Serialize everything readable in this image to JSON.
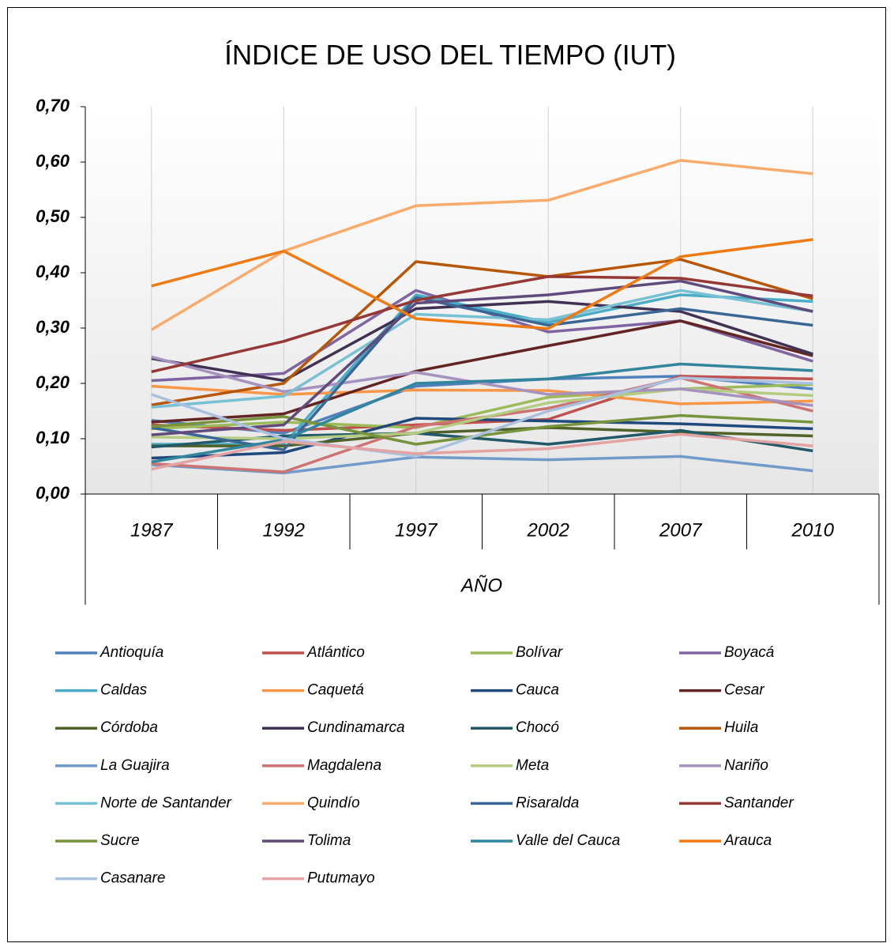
{
  "chart_data": {
    "type": "line",
    "title": "ÍNDICE DE USO DEL TIEMPO (IUT)",
    "x_label": "AÑO",
    "categories": [
      "1987",
      "1992",
      "1997",
      "2002",
      "2007",
      "2010"
    ],
    "ylim": [
      0,
      0.7
    ],
    "yticks": [
      {
        "value": 0,
        "label": "0,00"
      },
      {
        "value": 0.1,
        "label": "0,10"
      },
      {
        "value": 0.2,
        "label": "0,20"
      },
      {
        "value": 0.3,
        "label": "0,30"
      },
      {
        "value": 0.4,
        "label": "0,40"
      },
      {
        "value": 0.5,
        "label": "0,50"
      },
      {
        "value": 0.6,
        "label": "0,60"
      },
      {
        "value": 0.7,
        "label": "0,70"
      }
    ],
    "grid": true,
    "series": [
      {
        "name": "Antioquía",
        "color": "#4f81bd",
        "values": [
          0.133,
          0.11,
          0.195,
          0.208,
          0.213,
          0.19
        ]
      },
      {
        "name": "Atlántico",
        "color": "#c0504d",
        "values": [
          0.125,
          0.115,
          0.125,
          0.135,
          0.213,
          0.208
        ]
      },
      {
        "name": "Bolívar",
        "color": "#9bbb59",
        "values": [
          0.118,
          0.13,
          0.12,
          0.175,
          0.19,
          0.198
        ]
      },
      {
        "name": "Boyacá",
        "color": "#8064a2",
        "values": [
          0.205,
          0.218,
          0.368,
          0.293,
          0.313,
          0.24
        ]
      },
      {
        "name": "Caldas",
        "color": "#4bacc6",
        "values": [
          0.09,
          0.09,
          0.36,
          0.31,
          0.36,
          0.348
        ]
      },
      {
        "name": "Caquetá",
        "color": "#f79646",
        "values": [
          0.195,
          0.18,
          0.188,
          0.187,
          0.163,
          0.168
        ]
      },
      {
        "name": "Cauca",
        "color": "#1f497d",
        "values": [
          0.065,
          0.075,
          0.137,
          0.132,
          0.127,
          0.118
        ]
      },
      {
        "name": "Cesar",
        "color": "#632523",
        "values": [
          0.13,
          0.145,
          0.222,
          0.268,
          0.313,
          0.25
        ]
      },
      {
        "name": "Córdoba",
        "color": "#4f6228",
        "values": [
          0.087,
          0.087,
          0.11,
          0.12,
          0.112,
          0.105
        ]
      },
      {
        "name": "Cundinamarca",
        "color": "#403152",
        "values": [
          0.245,
          0.205,
          0.335,
          0.348,
          0.33,
          0.253
        ]
      },
      {
        "name": "Chocó",
        "color": "#215968",
        "values": [
          0.085,
          0.105,
          0.11,
          0.09,
          0.115,
          0.078
        ]
      },
      {
        "name": "Huila",
        "color": "#b65708",
        "values": [
          0.161,
          0.2,
          0.42,
          0.393,
          0.424,
          0.353
        ]
      },
      {
        "name": "La Guajira",
        "color": "#729aca",
        "values": [
          0.053,
          0.038,
          0.067,
          0.062,
          0.068,
          0.042
        ]
      },
      {
        "name": "Magdalena",
        "color": "#cd7371",
        "values": [
          0.055,
          0.04,
          0.122,
          0.155,
          0.21,
          0.15
        ]
      },
      {
        "name": "Meta",
        "color": "#b3cc82",
        "values": [
          0.103,
          0.1,
          0.11,
          0.165,
          0.19,
          0.178
        ]
      },
      {
        "name": "Nariño",
        "color": "#a692be",
        "values": [
          0.248,
          0.185,
          0.22,
          0.18,
          0.19,
          0.16
        ]
      },
      {
        "name": "Norte de Santander",
        "color": "#78c0d4",
        "values": [
          0.157,
          0.177,
          0.325,
          0.315,
          0.368,
          0.33
        ]
      },
      {
        "name": "Quindío",
        "color": "#f9ab6c",
        "values": [
          0.297,
          0.439,
          0.521,
          0.531,
          0.603,
          0.579
        ]
      },
      {
        "name": "Risaralda",
        "color": "#3a6696",
        "values": [
          0.12,
          0.08,
          0.355,
          0.305,
          0.335,
          0.305
        ]
      },
      {
        "name": "Santander",
        "color": "#953735",
        "values": [
          0.221,
          0.276,
          0.35,
          0.393,
          0.39,
          0.358
        ]
      },
      {
        "name": "Sucre",
        "color": "#77933c",
        "values": [
          0.122,
          0.14,
          0.09,
          0.122,
          0.142,
          0.13
        ]
      },
      {
        "name": "Tolima",
        "color": "#604a7b",
        "values": [
          0.107,
          0.125,
          0.345,
          0.36,
          0.385,
          0.33
        ]
      },
      {
        "name": "Valle del Cauca",
        "color": "#31859c",
        "values": [
          0.058,
          0.098,
          0.2,
          0.208,
          0.235,
          0.223
        ]
      },
      {
        "name": "Arauca",
        "color": "#f07a12",
        "values": [
          0.376,
          0.439,
          0.317,
          0.299,
          0.429,
          0.46
        ]
      },
      {
        "name": "Casanare",
        "color": "#a9c0de",
        "values": [
          0.18,
          0.1,
          0.068,
          0.15,
          0.21,
          0.2
        ]
      },
      {
        "name": "Putumayo",
        "color": "#e2a3a2",
        "values": [
          0.045,
          0.095,
          0.073,
          0.082,
          0.108,
          0.087
        ]
      }
    ]
  }
}
